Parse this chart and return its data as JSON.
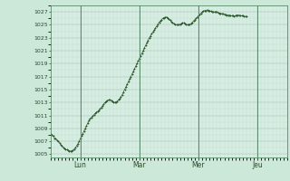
{
  "title": "",
  "background_color": "#cce8d8",
  "plot_bg_color": "#d5ede2",
  "line_color": "#2d5a2d",
  "marker_color": "#2d5a2d",
  "grid_major_color": "#a0b8a8",
  "grid_minor_color": "#b8d0c0",
  "ytick_color": "#2d4a2d",
  "xtick_color": "#2d4a2d",
  "spine_color": "#5a8a6a",
  "ylim": [
    1004.5,
    1028.0
  ],
  "yticks": [
    1005,
    1007,
    1009,
    1011,
    1013,
    1015,
    1017,
    1019,
    1021,
    1023,
    1025,
    1027
  ],
  "xtick_labels": [
    "Lun",
    "Mar",
    "Mer",
    "Jeu"
  ],
  "xtick_positions": [
    24,
    72,
    120,
    168
  ],
  "xlim": [
    0,
    192
  ],
  "pressure_data": [
    1008.2,
    1008.0,
    1007.8,
    1007.5,
    1007.4,
    1007.2,
    1007.0,
    1006.8,
    1006.5,
    1006.3,
    1006.1,
    1005.9,
    1005.8,
    1005.7,
    1005.6,
    1005.5,
    1005.5,
    1005.5,
    1005.6,
    1005.8,
    1006.0,
    1006.3,
    1006.6,
    1007.0,
    1007.4,
    1007.8,
    1008.2,
    1008.6,
    1009.0,
    1009.4,
    1009.8,
    1010.2,
    1010.5,
    1010.7,
    1010.9,
    1011.1,
    1011.3,
    1011.5,
    1011.6,
    1011.8,
    1012.0,
    1012.2,
    1012.5,
    1012.7,
    1013.0,
    1013.2,
    1013.3,
    1013.4,
    1013.4,
    1013.3,
    1013.2,
    1013.1,
    1013.0,
    1013.1,
    1013.2,
    1013.4,
    1013.6,
    1013.9,
    1014.2,
    1014.6,
    1015.0,
    1015.4,
    1015.8,
    1016.2,
    1016.6,
    1017.0,
    1017.4,
    1017.8,
    1018.2,
    1018.6,
    1019.0,
    1019.4,
    1019.8,
    1020.2,
    1020.6,
    1021.0,
    1021.4,
    1021.8,
    1022.2,
    1022.6,
    1023.0,
    1023.3,
    1023.6,
    1023.9,
    1024.2,
    1024.5,
    1024.8,
    1025.1,
    1025.4,
    1025.6,
    1025.8,
    1026.0,
    1026.1,
    1026.2,
    1026.2,
    1026.1,
    1025.9,
    1025.7,
    1025.5,
    1025.3,
    1025.2,
    1025.1,
    1025.0,
    1025.0,
    1025.0,
    1025.1,
    1025.2,
    1025.3,
    1025.3,
    1025.2,
    1025.1,
    1025.0,
    1025.0,
    1025.1,
    1025.2,
    1025.4,
    1025.6,
    1025.8,
    1026.0,
    1026.2,
    1026.4,
    1026.6,
    1026.8,
    1027.0,
    1027.1,
    1027.2,
    1027.2,
    1027.3,
    1027.2,
    1027.2,
    1027.1,
    1027.0,
    1027.0,
    1027.0,
    1027.0,
    1027.0,
    1026.9,
    1026.8,
    1026.8,
    1026.7,
    1026.7,
    1026.6,
    1026.6,
    1026.5,
    1026.5,
    1026.5,
    1026.4,
    1026.4,
    1026.4,
    1026.3,
    1026.4,
    1026.5,
    1026.5,
    1026.5,
    1026.4,
    1026.4,
    1026.4,
    1026.3,
    1026.3,
    1026.3
  ]
}
